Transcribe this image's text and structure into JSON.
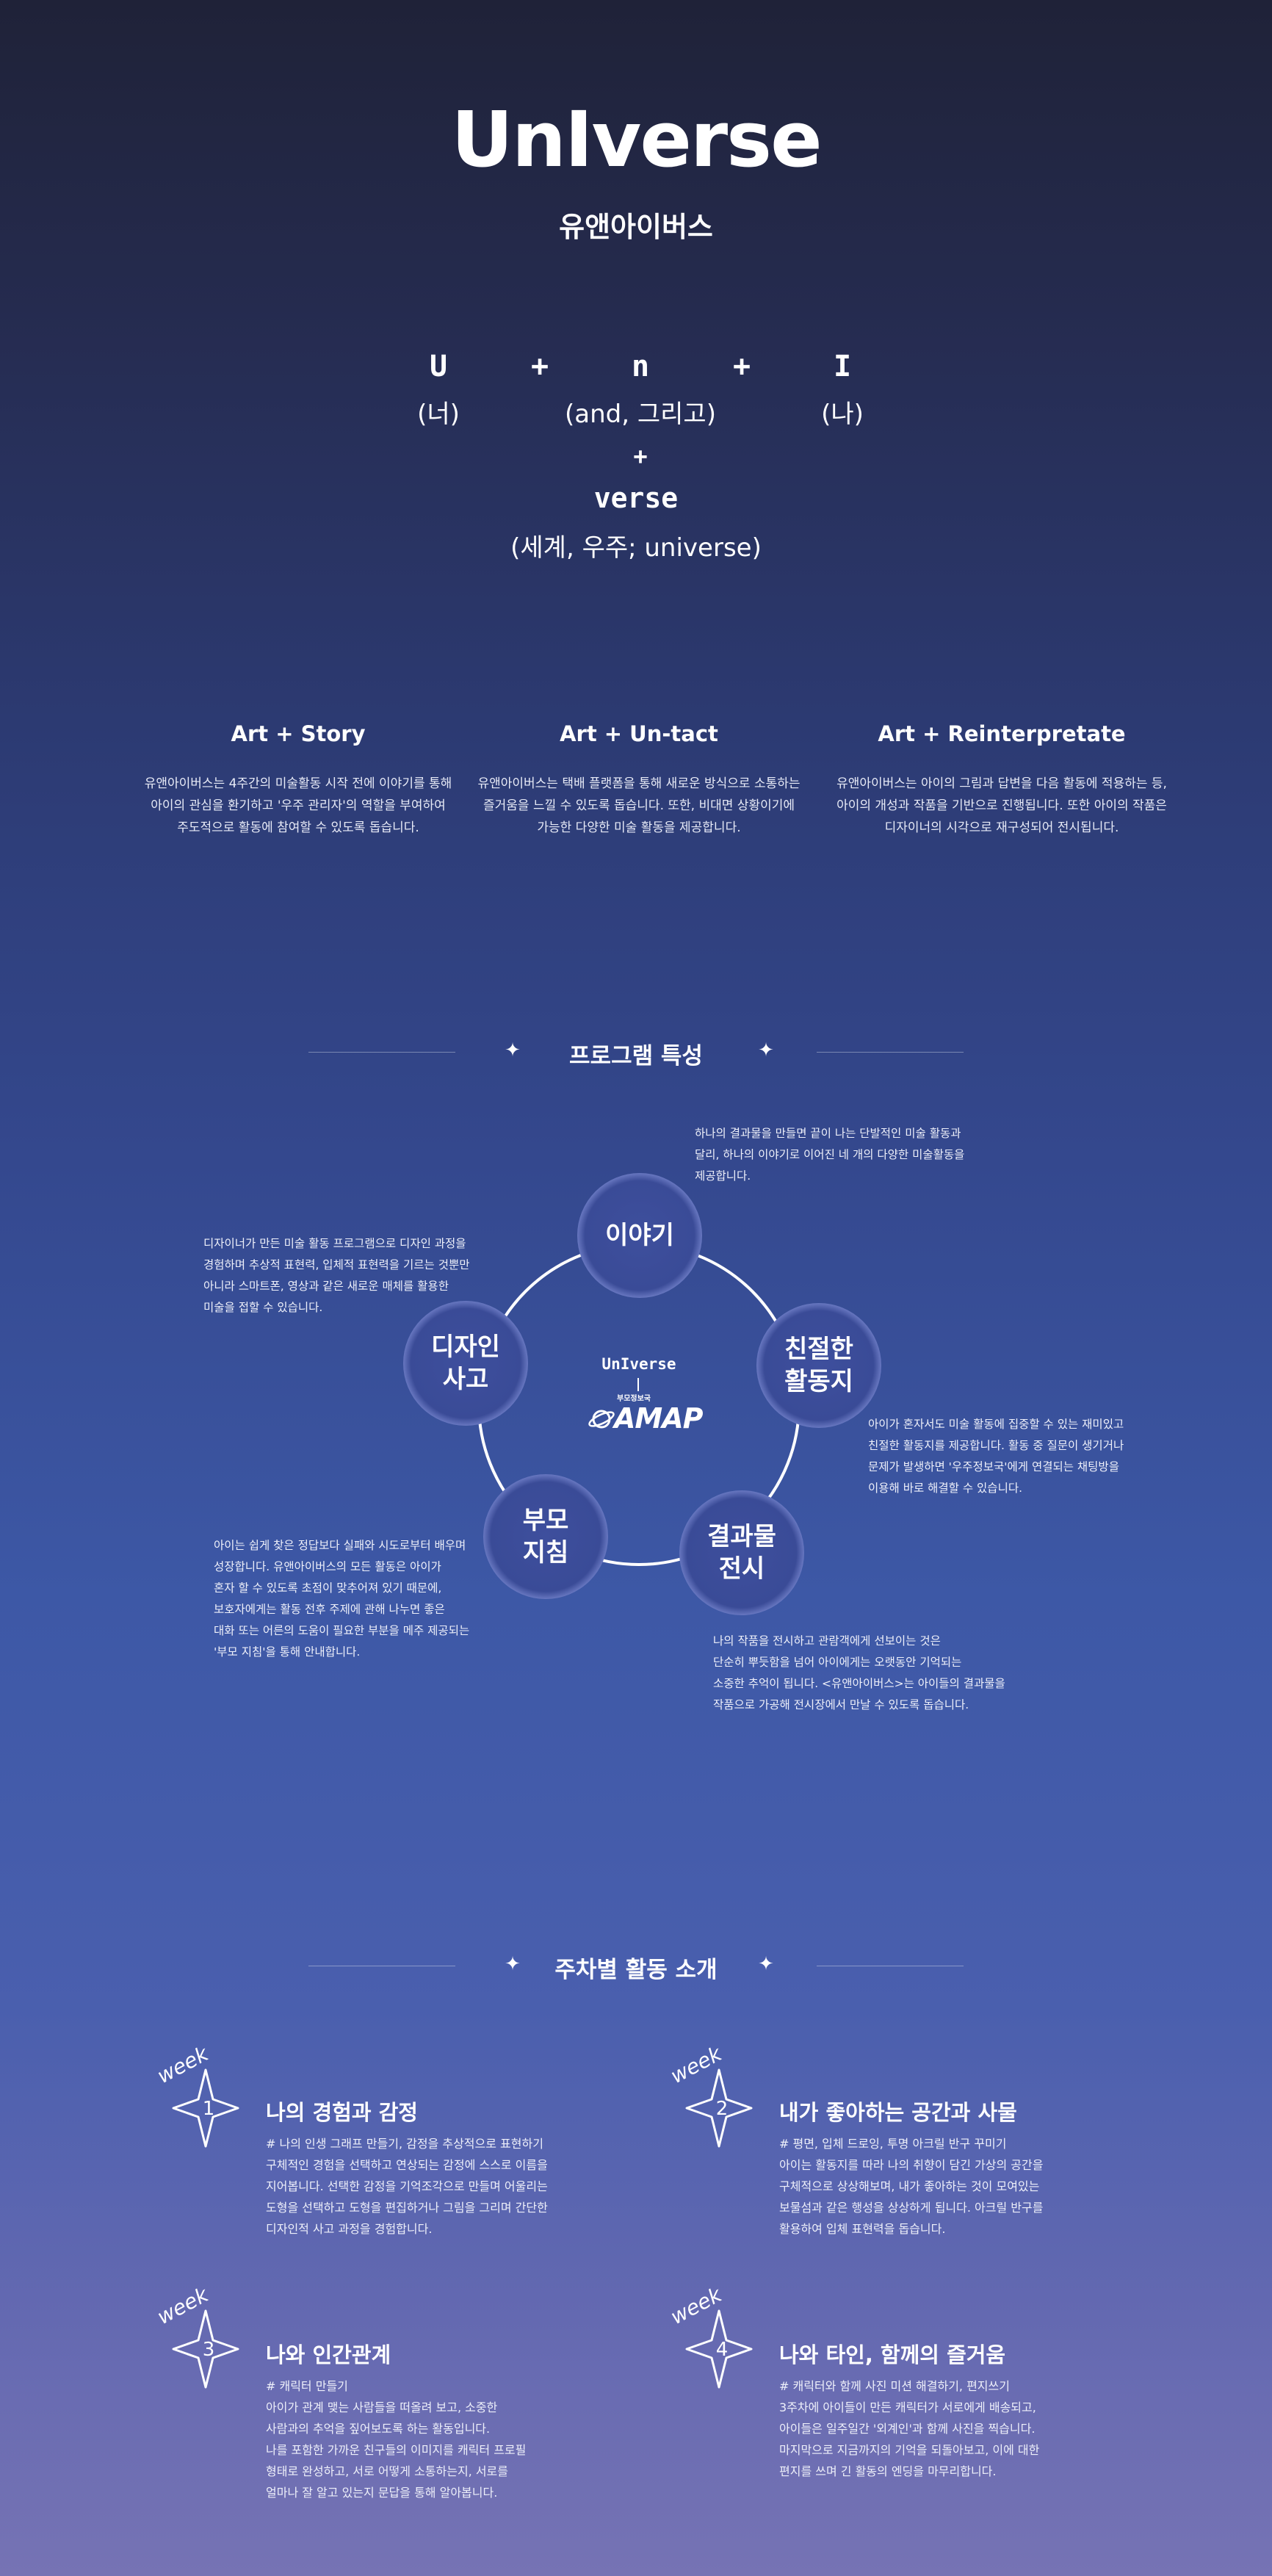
{
  "header": {
    "logo": "UnIverse",
    "subtitle": "유앤아이버스"
  },
  "formula": {
    "u_letter": "U",
    "u_meaning": "(너)",
    "plus1": "+",
    "n_letter": "n",
    "n_meaning": "(and, 그리고)",
    "plus2": "+",
    "i_letter": "I",
    "i_meaning": "(나)",
    "plus3": "+",
    "verse_word": "verse",
    "verse_meaning": "(세계, 우주; universe)"
  },
  "features": [
    {
      "title": "Art + Story",
      "lines": [
        "유앤아이버스는 4주간의 미술활동 시작 전에 이야기를 통해",
        "아이의 관심을 환기하고 '우주 관리자'의 역할을 부여하여",
        "주도적으로 활동에 참여할 수 있도록 돕습니다."
      ]
    },
    {
      "title": "Art + Un-tact",
      "lines": [
        "유앤아이버스는 택배 플랫폼을 통해 새로운 방식으로 소통하는",
        "즐거움을 느낄 수 있도록 돕습니다. 또한, 비대면 상황이기에",
        "가능한 다양한 미술 활동을 제공합니다."
      ]
    },
    {
      "title": "Art + Reinterpretate",
      "lines": [
        "유앤아이버스는 아이의 그림과 답변을 다음 활동에 적용하는 등,",
        "아이의 개성과 작품을 기반으로 진행됩니다. 또한 아이의 작품은",
        "디자이너의 시각으로 재구성되어 전시됩니다."
      ]
    }
  ],
  "program": {
    "section_title": "프로그램 특성",
    "center_logo": "UnIverse",
    "center_sub_small": "부모정보국",
    "center_sub": "AMAP",
    "nodes": {
      "story": "이야기",
      "sheet": "친절한\n활동지",
      "exhibit": "결과물\n전시",
      "guide": "부모\n지침",
      "design": "디자인\n사고"
    },
    "descriptions": {
      "story": [
        "하나의 결과물을 만들면 끝이 나는 단발적인 미술 활동과",
        "달리, 하나의 이야기로 이어진 네 개의 다양한 미술활동을",
        "제공합니다."
      ],
      "sheet": [
        "아이가 혼자서도 미술 활동에 집중할 수 있는 재미있고",
        "친절한 활동지를 제공합니다. 활동 중 질문이 생기거나",
        "문제가 발생하면 '우주정보국'에게 연결되는 채팅방을",
        "이용해 바로 해결할 수 있습니다."
      ],
      "exhibit": [
        "나의 작품을 전시하고 관람객에게 선보이는 것은",
        " 단순히 뿌듯함을 넘어 아이에게는 오랫동안 기억되는",
        "소중한 추억이 됩니다. <유앤아이버스>는 아이들의 결과물을",
        "작품으로 가공해 전시장에서 만날 수 있도록 돕습니다."
      ],
      "guide": [
        "아이는 쉽게 찾은 정답보다 실패와 시도로부터 배우며",
        "성장합니다. 유앤아이버스의 모든 활동은 아이가",
        "혼자 할 수 있도록 초점이 맞추어져 있기 때문에,",
        "보호자에게는 활동 전후 주제에 관해 나누면 좋은",
        "대화 또는 어른의 도움이 필요한 부분을 메주 제공되는",
        "'부모 지침'을 통해 안내합니다."
      ],
      "design": [
        "디자이너가 만든 미술 활동 프로그램으로 디자인 과정을",
        "경험하며 추상적 표현력, 입체적 표현력을 기르는 것뿐만",
        "아니라 스마트폰, 영상과 같은 새로운 매체를 활용한",
        "미술을 접할 수 있습니다."
      ]
    }
  },
  "weekly": {
    "section_title": "주차별 활동 소개",
    "weeks": [
      {
        "label": "week",
        "number": "1",
        "title": "나의 경험과 감정",
        "lines": [
          "# 나의 인생 그래프 만들기, 감정을 추상적으로 표현하기",
          "구체적인 경험을 선택하고 연상되는 감정에 스스로 이름을",
          "지어봅니다. 선택한 감정을 기억조각으로 만들며 어울리는",
          "도형을 선택하고 도형을 편집하거나 그림을 그리며 간단한",
          "디자인적 사고 과정을 경험합니다."
        ]
      },
      {
        "label": "week",
        "number": "2",
        "title": "내가 좋아하는 공간과 사물",
        "lines": [
          "# 평면, 입체 드로잉, 투명 아크릴 반구 꾸미기",
          "아이는 활동지를 따라 나의 취향이 담긴 가상의 공간을",
          "구체적으로 상상해보며, 내가 좋아하는 것이 모여있는",
          "보물섬과 같은 행성을 상상하게 됩니다. 아크릴 반구를",
          "활용하여 입체 표현력을 돕습니다."
        ]
      },
      {
        "label": "week",
        "number": "3",
        "title": "나와 인간관계",
        "lines": [
          "# 캐릭터 만들기",
          "아이가 관계 맺는 사람들을 떠올려 보고, 소중한",
          "사람과의 추억을 짚어보도록 하는 활동입니다.",
          "나를 포함한 가까운 친구들의 이미지를 캐릭터 프로필",
          "형태로 완성하고, 서로 어떻게 소통하는지, 서로를",
          "얼마나 잘 알고 있는지 문답을 통해 알아봅니다."
        ]
      },
      {
        "label": "week",
        "number": "4",
        "title": "나와 타인, 함께의 즐거움",
        "lines": [
          "# 캐릭터와 함께 사진 미션 해결하기, 편지쓰기",
          "3주차에 아이들이 만든 캐릭터가 서로에게 배송되고,",
          "아이들은 일주일간 '외계인'과 함께 사진을 찍습니다.",
          "마지막으로 지금까지의 기억을 되돌아보고, 이에 대한",
          "편지를 쓰며 긴 활동의 엔딩을 마무리합니다."
        ]
      }
    ]
  }
}
